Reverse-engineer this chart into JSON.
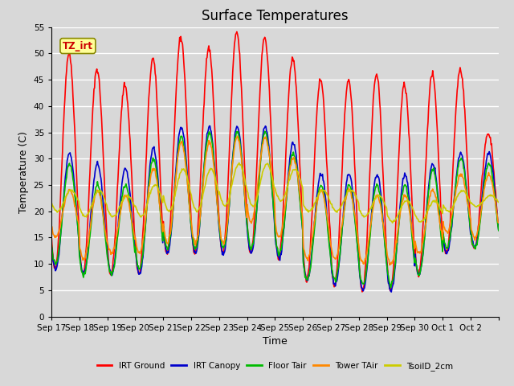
{
  "title": "Surface Temperatures",
  "xlabel": "Time",
  "ylabel": "Temperature (C)",
  "ylim": [
    0,
    55
  ],
  "yticks": [
    0,
    5,
    10,
    15,
    20,
    25,
    30,
    35,
    40,
    45,
    50,
    55
  ],
  "background_color": "#d8d8d8",
  "plot_bg_color": "#d8d8d8",
  "grid_color": "white",
  "annotation_text": "TZ_irt",
  "annotation_color": "#cc0000",
  "annotation_bg": "#ffff99",
  "annotation_border": "#888800",
  "series": [
    {
      "label": "IRT Ground",
      "color": "#ff0000",
      "lw": 1.2
    },
    {
      "label": "IRT Canopy",
      "color": "#0000cc",
      "lw": 1.2
    },
    {
      "label": "Floor Tair",
      "color": "#00bb00",
      "lw": 1.2
    },
    {
      "label": "Tower TAir",
      "color": "#ff8800",
      "lw": 1.2
    },
    {
      "label": "TsoilD_2cm",
      "color": "#cccc00",
      "lw": 1.2
    }
  ],
  "n_days": 16,
  "xtick_labels": [
    "Sep 17",
    "Sep 18",
    "Sep 19",
    "Sep 20",
    "Sep 21",
    "Sep 22",
    "Sep 23",
    "Sep 24",
    "Sep 25",
    "Sep 26",
    "Sep 27",
    "Sep 28",
    "Sep 29",
    "Sep 30",
    "Oct 1",
    "Oct 2"
  ],
  "title_fontsize": 12,
  "axis_fontsize": 9,
  "tick_fontsize": 7.5,
  "irt_ground_peaks": [
    50,
    47,
    44,
    49,
    53,
    51,
    54,
    53,
    49,
    45,
    45,
    46,
    44,
    46,
    47,
    35
  ],
  "irt_ground_troughs": [
    9,
    8,
    8,
    8,
    12,
    12,
    12,
    12,
    11,
    7,
    6,
    5,
    5,
    8,
    12,
    13
  ],
  "irt_canopy_peaks": [
    31,
    29,
    28,
    32,
    36,
    36,
    36,
    36,
    33,
    27,
    27,
    27,
    27,
    29,
    31,
    31
  ],
  "irt_canopy_troughs": [
    9,
    8,
    8,
    8,
    12,
    12,
    12,
    12,
    11,
    7,
    6,
    5,
    5,
    8,
    12,
    13
  ],
  "floor_tair_peaks": [
    29,
    25,
    25,
    30,
    34,
    35,
    35,
    35,
    31,
    25,
    25,
    25,
    25,
    28,
    30,
    29
  ],
  "floor_tair_troughs": [
    10,
    8,
    8,
    9,
    13,
    13,
    13,
    13,
    12,
    7,
    7,
    6,
    6,
    8,
    13,
    13
  ],
  "tower_tair_peaks": [
    24,
    24,
    23,
    28,
    33,
    33,
    34,
    34,
    30,
    24,
    24,
    23,
    23,
    24,
    27,
    27
  ],
  "tower_tair_troughs": [
    15,
    11,
    12,
    12,
    14,
    14,
    14,
    18,
    15,
    11,
    11,
    10,
    10,
    12,
    16,
    15
  ],
  "tsoil_peaks": [
    24,
    24,
    23,
    25,
    28,
    28,
    29,
    29,
    28,
    24,
    24,
    23,
    22,
    22,
    24,
    23
  ],
  "tsoil_troughs": [
    20,
    19,
    19,
    19,
    20,
    20,
    21,
    21,
    22,
    20,
    20,
    19,
    18,
    18,
    20,
    21
  ]
}
